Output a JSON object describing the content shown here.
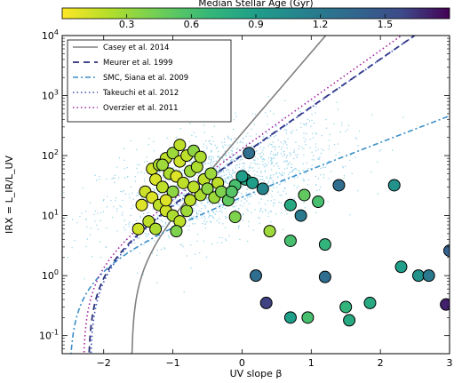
{
  "chart_data": {
    "type": "scatter",
    "xlabel": "UV slope β",
    "ylabel": "IRX = L_IR/L_UV",
    "xlim": [
      -2.6,
      3.0
    ],
    "ylim": [
      0.05,
      10000
    ],
    "y_scale": "log",
    "x_ticks": [
      "−2",
      "−1",
      "0",
      "1",
      "2",
      "3"
    ],
    "x_tick_values": [
      -2,
      -1,
      0,
      1,
      2,
      3
    ],
    "y_ticks": [
      "10^-1",
      "10^0",
      "10^1",
      "10^2",
      "10^3",
      "10^4"
    ],
    "y_tick_values": [
      0.1,
      1,
      10,
      100,
      1000,
      10000
    ],
    "colorbar": {
      "label": "Median Stellar Age (Gyr)",
      "ticks": [
        "0.3",
        "0.6",
        "0.9",
        "1.2",
        "1.5"
      ],
      "tick_values": [
        0.3,
        0.6,
        0.9,
        1.2,
        1.5
      ],
      "range": [
        0.0,
        1.8
      ],
      "colormap": "viridis_r"
    },
    "legend_placement": "top-left",
    "curves": [
      {
        "name": "Casey et al. 2014",
        "color": "#808080",
        "style": "solid"
      },
      {
        "name": "Meurer et al. 1999",
        "color": "#2b2f78",
        "style": "dashed"
      },
      {
        "name": "SMC, Siana et al. 2009",
        "color": "#3a8fc8",
        "style": "dashdot"
      },
      {
        "name": "Takeuchi et al. 2012",
        "color": "#3a4fb8",
        "style": "dotted"
      },
      {
        "name": "Overzier et al. 2011",
        "color": "#a020a0",
        "style": "dotted"
      }
    ],
    "background_points_color": "#8fd0e8",
    "points": [
      [
        -1.3,
        60,
        0.15
      ],
      [
        -1.2,
        70,
        0.25
      ],
      [
        -1.1,
        90,
        0.2
      ],
      [
        -1.0,
        110,
        0.3
      ],
      [
        -0.9,
        80,
        0.15
      ],
      [
        -0.8,
        100,
        0.2
      ],
      [
        -0.7,
        120,
        0.35
      ],
      [
        -1.25,
        40,
        0.12
      ],
      [
        -1.15,
        30,
        0.2
      ],
      [
        -1.05,
        50,
        0.25
      ],
      [
        -0.95,
        45,
        0.1
      ],
      [
        -0.85,
        35,
        0.2
      ],
      [
        -0.75,
        55,
        0.3
      ],
      [
        -0.65,
        65,
        0.25
      ],
      [
        -0.55,
        40,
        0.2
      ],
      [
        -0.45,
        50,
        0.3
      ],
      [
        -0.35,
        35,
        0.2
      ],
      [
        -1.4,
        25,
        0.15
      ],
      [
        -1.3,
        20,
        0.1
      ],
      [
        -1.2,
        15,
        0.2
      ],
      [
        -1.1,
        12,
        0.15
      ],
      [
        -1.0,
        10,
        0.25
      ],
      [
        -0.9,
        8,
        0.2
      ],
      [
        -0.8,
        12,
        0.3
      ],
      [
        -1.45,
        15,
        0.1
      ],
      [
        -1.5,
        6,
        0.15
      ],
      [
        -1.35,
        8,
        0.2
      ],
      [
        -1.25,
        6,
        0.25
      ],
      [
        -0.95,
        5.5,
        0.4
      ],
      [
        -0.75,
        18,
        0.2
      ],
      [
        -0.6,
        22,
        0.25
      ],
      [
        -0.5,
        28,
        0.35
      ],
      [
        -0.4,
        20,
        0.3
      ],
      [
        -0.3,
        25,
        0.4
      ],
      [
        -0.2,
        18,
        0.5
      ],
      [
        -0.1,
        32,
        0.6
      ],
      [
        0.05,
        40,
        0.8
      ],
      [
        0.15,
        35,
        0.9
      ],
      [
        -0.15,
        25,
        0.55
      ],
      [
        -0.7,
        30,
        0.2
      ],
      [
        -1.15,
        70,
        0.3
      ],
      [
        -0.9,
        150,
        0.2
      ],
      [
        -0.6,
        95,
        0.25
      ],
      [
        -1.0,
        25,
        0.35
      ],
      [
        -1.1,
        18,
        0.1
      ],
      [
        0.1,
        110,
        1.3
      ],
      [
        0.0,
        45,
        0.9
      ],
      [
        0.3,
        28,
        1.1
      ],
      [
        0.4,
        5.5,
        0.3
      ],
      [
        -0.1,
        9.5,
        0.4
      ],
      [
        0.9,
        22,
        0.5
      ],
      [
        0.85,
        10,
        1.2
      ],
      [
        0.7,
        15,
        0.8
      ],
      [
        1.1,
        17,
        0.6
      ],
      [
        1.4,
        32,
        1.3
      ],
      [
        2.2,
        32,
        1.0
      ],
      [
        0.7,
        3.8,
        0.6
      ],
      [
        1.2,
        3.3,
        0.7
      ],
      [
        1.2,
        0.95,
        1.3
      ],
      [
        0.2,
        1.0,
        1.3
      ],
      [
        0.35,
        0.35,
        1.6
      ],
      [
        0.7,
        0.2,
        0.9
      ],
      [
        0.95,
        0.2,
        0.6
      ],
      [
        1.5,
        0.3,
        0.7
      ],
      [
        1.55,
        0.18,
        0.8
      ],
      [
        1.85,
        0.35,
        0.8
      ],
      [
        2.3,
        1.4,
        0.9
      ],
      [
        2.55,
        1.0,
        1.0
      ],
      [
        2.7,
        1.0,
        1.2
      ],
      [
        2.95,
        0.33,
        1.7
      ],
      [
        3.0,
        2.6,
        1.4
      ]
    ]
  }
}
